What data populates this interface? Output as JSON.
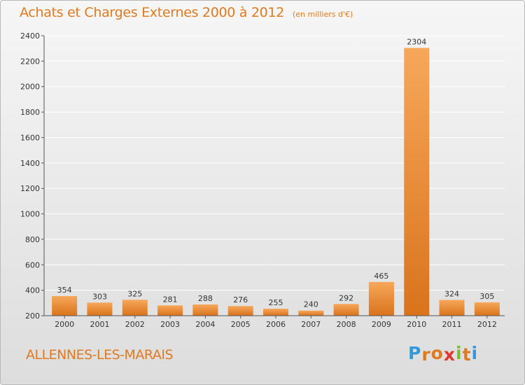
{
  "header": {
    "title": "Achats et Charges Externes 2000 à 2012",
    "subtitle": "(en milliers d'€)"
  },
  "footer": {
    "commune": "ALLENNES-LES-MARAIS",
    "logo_text": "Proxiti"
  },
  "colors": {
    "accent": "#e07a20",
    "bar_light": "#f7a75a",
    "bar_dark": "#d9731c",
    "axis": "#555555",
    "grid": "#ffffff",
    "logo_letters": [
      "#2d9be0",
      "#e07a20",
      "#e07a20",
      "#e0362f",
      "#7dbd2a",
      "#e07a20",
      "#2d9be0"
    ]
  },
  "chart_data": {
    "type": "bar",
    "title": "Achats et Charges Externes 2000 à 2012",
    "subtitle": "(en milliers d'€)",
    "xlabel": "",
    "ylabel": "",
    "categories": [
      "2000",
      "2001",
      "2002",
      "2003",
      "2004",
      "2005",
      "2006",
      "2007",
      "2008",
      "2009",
      "2010",
      "2011",
      "2012"
    ],
    "values": [
      354,
      303,
      325,
      281,
      288,
      276,
      255,
      240,
      292,
      465,
      2304,
      324,
      305
    ],
    "ylim": [
      200,
      2400
    ],
    "yticks": [
      200,
      400,
      600,
      800,
      1000,
      1200,
      1400,
      1600,
      1800,
      2000,
      2200,
      2400
    ],
    "grid": true,
    "legend": "none"
  }
}
